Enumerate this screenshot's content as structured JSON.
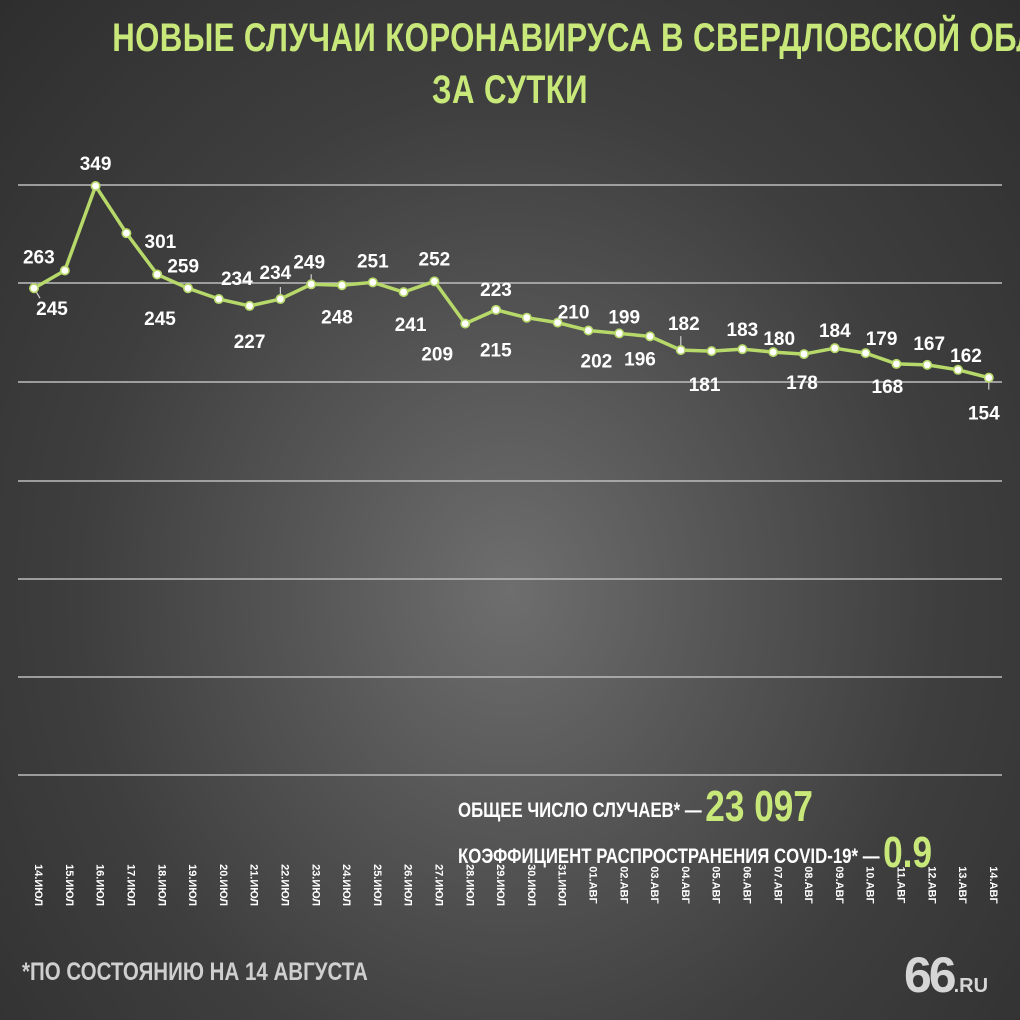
{
  "title_line1": "НОВЫЕ СЛУЧАИ КОРОНАВИРУСА В СВЕРДЛОВСКОЙ ОБЛАСТИ",
  "title_line2": "ЗА СУТКИ",
  "stats": {
    "total_label": "ОБЩЕЕ ЧИСЛО СЛУЧАЕВ* —",
    "total_value": "23 097",
    "rt_label": "КОЭФФИЦИЕНТ РАСПРОСТРАНЕНИЯ COVID-19* —",
    "rt_value": "0.9"
  },
  "footnote": "*ПО СОСТОЯНИЮ НА 14 АВГУСТА",
  "logo": {
    "mark": "66",
    "suffix": ".RU"
  },
  "colors": {
    "accent": "#c8e87a",
    "line": "#b7d96a",
    "grid": "#bdbdbd"
  },
  "chart_data": {
    "type": "line",
    "title": "НОВЫЕ СЛУЧАИ КОРОНАВИРУСА В СВЕРДЛОВСКОЙ ОБЛАСТИ ЗА СУТКИ",
    "grid": true,
    "ylim": [
      0,
      350
    ],
    "categories": [
      "14.ИЮЛ",
      "15.ИЮЛ",
      "16.ИЮЛ",
      "17.ИЮЛ",
      "18.ИЮЛ",
      "19.ИЮЛ",
      "20.ИЮЛ",
      "21.ИЮЛ",
      "22.ИЮЛ",
      "23.ИЮЛ",
      "24.ИЮЛ",
      "25.ИЮЛ",
      "26.ИЮЛ",
      "27.ИЮЛ",
      "28.ИЮЛ",
      "29.ИЮЛ",
      "30.ИЮЛ",
      "31.ИЮЛ",
      "01.АВГ",
      "02.АВГ",
      "03.АВГ",
      "04.АВГ",
      "05.АВГ",
      "06.АВГ",
      "07.АВГ",
      "08.АВГ",
      "09.АВГ",
      "10.АВГ",
      "11.АВГ",
      "12.АВГ",
      "13.АВГ",
      "14.АВГ"
    ],
    "values": [
      245,
      263,
      349,
      301,
      259,
      245,
      234,
      227,
      234,
      249,
      248,
      251,
      241,
      252,
      209,
      223,
      215,
      210,
      202,
      199,
      196,
      182,
      181,
      183,
      180,
      178,
      184,
      179,
      168,
      167,
      162,
      154
    ]
  }
}
